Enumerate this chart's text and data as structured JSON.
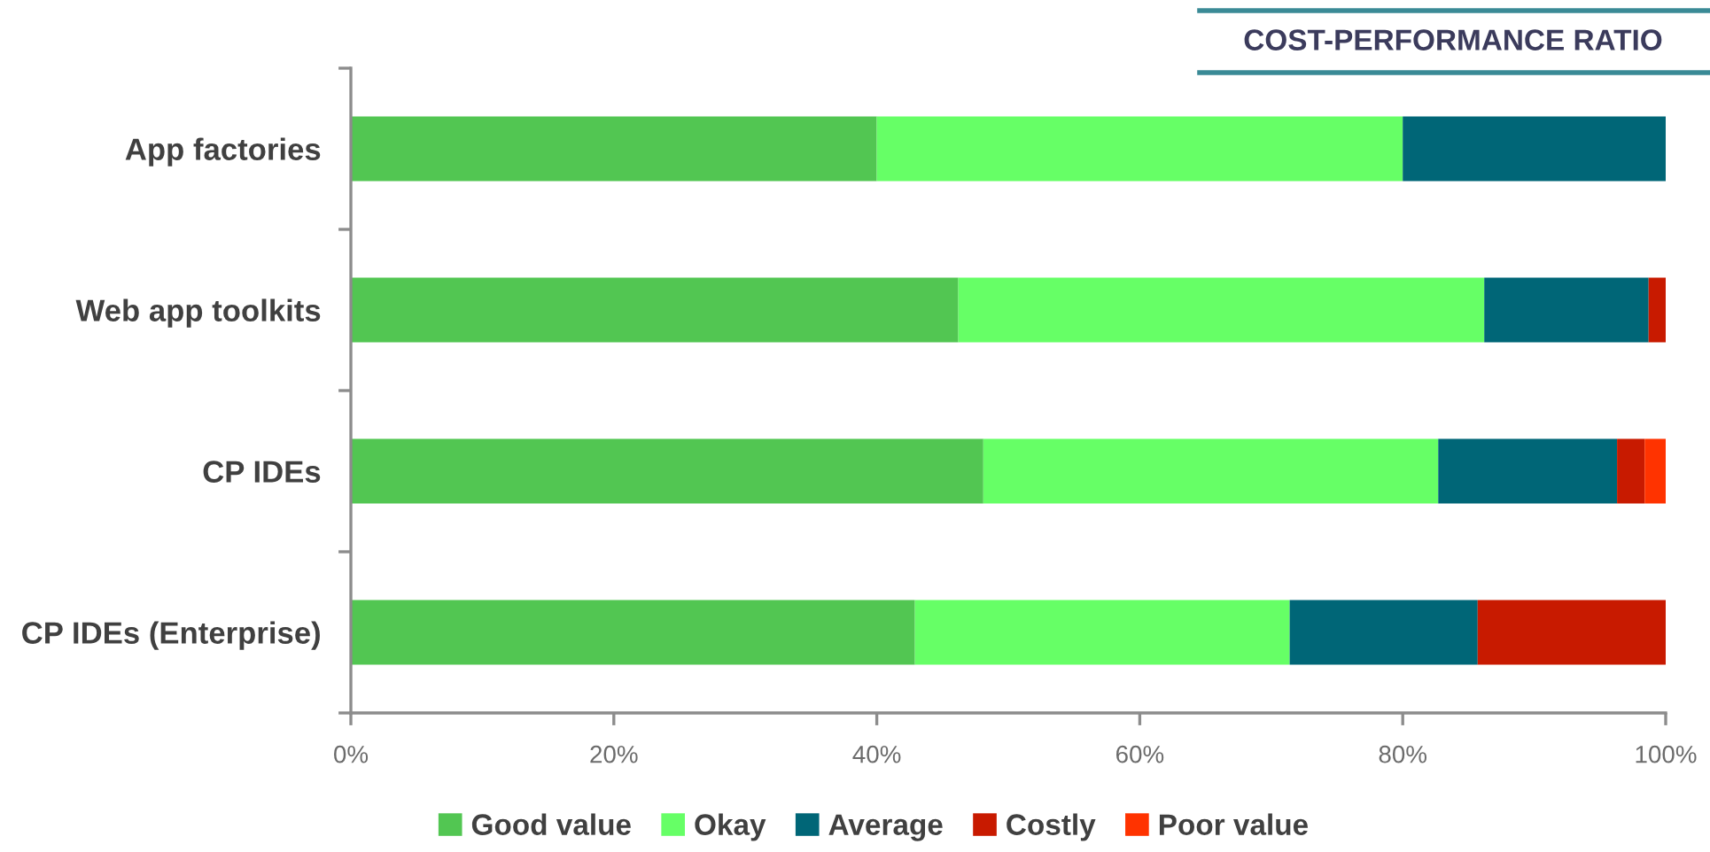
{
  "chart_data": {
    "type": "bar",
    "orientation": "horizontal",
    "stacked": true,
    "title": "COST-PERFORMANCE RATIO",
    "categories": [
      "App factories",
      "Web app toolkits",
      "CP IDEs",
      "CP IDEs (Enterprise)"
    ],
    "series": [
      {
        "name": "Good value",
        "color": "#52c652",
        "values": [
          40,
          46.2,
          48.1,
          42.9
        ]
      },
      {
        "name": "Okay",
        "color": "#66ff66",
        "values": [
          40,
          40,
          34.6,
          28.5
        ]
      },
      {
        "name": "Average",
        "color": "#006677",
        "values": [
          20,
          12.5,
          13.6,
          14.3
        ]
      },
      {
        "name": "Costly",
        "color": "#c81a00",
        "values": [
          null,
          1.3,
          2.1,
          14.3
        ]
      },
      {
        "name": "Poor value",
        "color": "#ff3300",
        "values": [
          null,
          null,
          1.6,
          null
        ]
      }
    ],
    "xlim": [
      0,
      100
    ],
    "xticks": [
      {
        "value": 0,
        "label": "0%"
      },
      {
        "value": 20,
        "label": "20%"
      },
      {
        "value": 40,
        "label": "40%"
      },
      {
        "value": 60,
        "label": "60%"
      },
      {
        "value": 80,
        "label": "80%"
      },
      {
        "value": 100,
        "label": "100%"
      }
    ],
    "legend": "bottom"
  }
}
